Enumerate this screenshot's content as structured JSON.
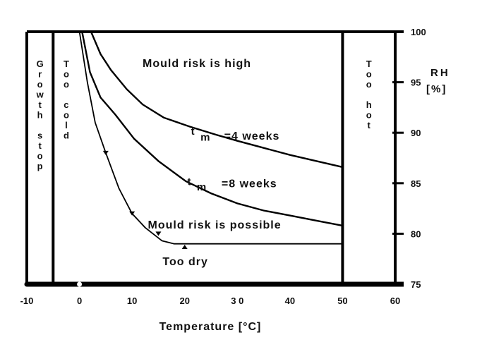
{
  "chart_data": {
    "type": "line",
    "xlabel": "Temperature [°C]",
    "ylabel": "RH\n[%]",
    "ylabel_lines": [
      "RH",
      "[%]"
    ],
    "xlim": [
      -10,
      60
    ],
    "ylim": [
      75,
      100
    ],
    "y_axis_side": "right",
    "grid": false,
    "xticks": [
      "-10",
      "0",
      "10",
      "20",
      "3 0",
      "40",
      "50",
      "60"
    ],
    "xtick_values": [
      -10,
      0,
      10,
      20,
      30,
      40,
      50,
      60
    ],
    "yticks": [
      "75",
      "80",
      "85",
      "90",
      "95",
      "100"
    ],
    "ytick_values": [
      75,
      80,
      85,
      90,
      95,
      100
    ],
    "series": [
      {
        "name": "t m =4 weeks",
        "x": [
          2.2,
          4,
          6,
          9,
          12,
          16,
          21,
          26,
          30,
          35,
          40,
          45,
          50
        ],
        "y": [
          100,
          97.8,
          96.2,
          94.3,
          92.8,
          91.5,
          90.6,
          89.8,
          89.2,
          88.5,
          87.8,
          87.2,
          86.6
        ]
      },
      {
        "name": "t m =8 weeks",
        "x": [
          0.5,
          2,
          4,
          6.8,
          10.4,
          15,
          20.2,
          25,
          30,
          35,
          40,
          45,
          50
        ],
        "y": [
          100,
          96,
          93.5,
          91.8,
          89.4,
          87.2,
          85.2,
          84,
          83,
          82.3,
          81.8,
          81.3,
          80.8
        ]
      },
      {
        "name": "Mould risk is possible",
        "x": [
          0,
          1.5,
          3,
          5,
          7.5,
          10,
          12.5,
          15.7,
          18,
          50
        ],
        "y": [
          100,
          95,
          91,
          88,
          84.5,
          82,
          80.6,
          79.3,
          79,
          79
        ]
      }
    ],
    "zones": [
      {
        "label": "Growth stop",
        "x": [
          -10,
          -5
        ]
      },
      {
        "label": "Too cold",
        "x": [
          -5,
          0
        ]
      },
      {
        "label": "Too hot",
        "x": [
          50,
          60
        ]
      }
    ],
    "annotations": [
      {
        "text": "Mould risk is high",
        "x": 12,
        "y": 96.5
      },
      {
        "text": "t",
        "x": 21.2,
        "y": 89.8
      },
      {
        "text": "m",
        "x": 23,
        "y": 89.2
      },
      {
        "text": "=4 weeks",
        "x": 27.5,
        "y": 89.3
      },
      {
        "text": "t",
        "x": 20.5,
        "y": 84.8
      },
      {
        "text": "m",
        "x": 22.3,
        "y": 84.3
      },
      {
        "text": "=8 weeks",
        "x": 27,
        "y": 84.6
      },
      {
        "text": "Mould risk is possible",
        "x": 13,
        "y": 80.5
      },
      {
        "text": "Too dry",
        "x": 15.8,
        "y": 76.9
      }
    ],
    "markers": [
      {
        "x": 5,
        "y": 88,
        "dir": "down"
      },
      {
        "x": 10,
        "y": 82,
        "dir": "down"
      },
      {
        "x": 15,
        "y": 80,
        "dir": "down"
      },
      {
        "x": 20,
        "y": 78.7,
        "dir": "up"
      }
    ]
  }
}
